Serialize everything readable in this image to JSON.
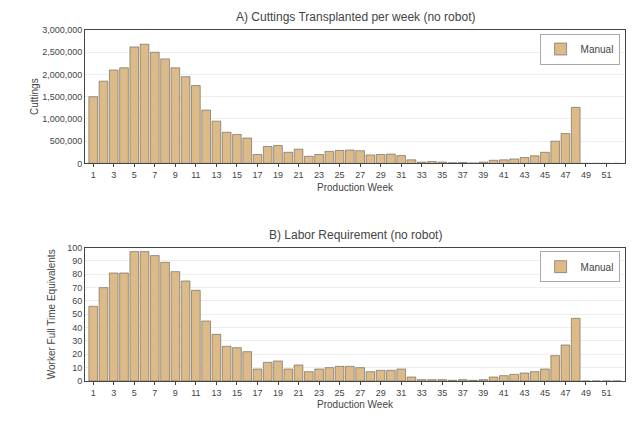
{
  "chart_data": [
    {
      "type": "bar",
      "title": "A) Cuttings Transplanted per week (no robot)",
      "xlabel": "Production Week",
      "ylabel": "Cuttings",
      "x": [
        1,
        2,
        3,
        4,
        5,
        6,
        7,
        8,
        9,
        10,
        11,
        12,
        13,
        14,
        15,
        16,
        17,
        18,
        19,
        20,
        21,
        22,
        23,
        24,
        25,
        26,
        27,
        28,
        29,
        30,
        31,
        32,
        33,
        34,
        35,
        36,
        37,
        38,
        39,
        40,
        41,
        42,
        43,
        44,
        45,
        46,
        47,
        48,
        49,
        50,
        51,
        52
      ],
      "series": [
        {
          "name": "Manual",
          "color": "#DDBB88",
          "values": [
            1500000,
            1850000,
            2100000,
            2150000,
            2620000,
            2680000,
            2500000,
            2350000,
            2150000,
            1950000,
            1750000,
            1200000,
            950000,
            700000,
            650000,
            570000,
            200000,
            380000,
            400000,
            250000,
            320000,
            160000,
            200000,
            270000,
            290000,
            300000,
            285000,
            190000,
            200000,
            210000,
            175000,
            80000,
            30000,
            40000,
            30000,
            15000,
            20000,
            10000,
            30000,
            70000,
            80000,
            100000,
            130000,
            170000,
            250000,
            500000,
            670000,
            1260000,
            0,
            0,
            0,
            0
          ]
        }
      ],
      "xlim": [
        0.2,
        52.8
      ],
      "xticks": [
        1,
        3,
        5,
        7,
        9,
        11,
        13,
        15,
        17,
        19,
        21,
        23,
        25,
        27,
        29,
        31,
        33,
        35,
        37,
        39,
        41,
        43,
        45,
        47,
        49,
        51
      ],
      "ylim": [
        0,
        3000000
      ],
      "yticks": [
        0,
        {
          "value": 500000,
          "label": "500,000"
        },
        {
          "value": 1000000,
          "label": "1,000,000"
        },
        {
          "value": 1500000,
          "label": "1,500,000"
        },
        {
          "value": 2000000,
          "label": "2,000,000"
        },
        {
          "value": 2500000,
          "label": "2,500,000"
        },
        {
          "value": 3000000,
          "label": "3,000,000"
        }
      ],
      "grid": "y",
      "legend": "upper right"
    },
    {
      "type": "bar",
      "title": "B) Labor Requirement (no robot)",
      "xlabel": "Production Week",
      "ylabel": "Worker Full Time Equivalents",
      "x": [
        1,
        2,
        3,
        4,
        5,
        6,
        7,
        8,
        9,
        10,
        11,
        12,
        13,
        14,
        15,
        16,
        17,
        18,
        19,
        20,
        21,
        22,
        23,
        24,
        25,
        26,
        27,
        28,
        29,
        30,
        31,
        32,
        33,
        34,
        35,
        36,
        37,
        38,
        39,
        40,
        41,
        42,
        43,
        44,
        45,
        46,
        47,
        48,
        49,
        50,
        51,
        52
      ],
      "series": [
        {
          "name": "Manual",
          "color": "#DDBB88",
          "values": [
            56,
            70,
            81,
            81,
            97,
            97,
            94,
            89,
            82,
            75,
            68,
            45,
            35,
            26,
            25,
            22,
            9,
            14,
            15,
            9,
            12,
            7,
            9,
            10,
            11,
            11,
            10,
            7,
            8,
            8,
            9,
            3,
            1,
            1,
            1,
            0.5,
            1,
            0.5,
            1,
            3,
            4,
            5,
            6,
            7,
            9,
            19,
            27,
            47,
            0,
            0,
            0,
            0
          ]
        }
      ],
      "xlim": [
        0.2,
        52.8
      ],
      "xticks": [
        1,
        3,
        5,
        7,
        9,
        11,
        13,
        15,
        17,
        19,
        21,
        23,
        25,
        27,
        29,
        31,
        33,
        35,
        37,
        39,
        41,
        43,
        45,
        47,
        49,
        51
      ],
      "ylim": [
        0,
        100
      ],
      "yticks": [
        0,
        10,
        20,
        30,
        40,
        50,
        60,
        70,
        80,
        90,
        100
      ],
      "grid": "y",
      "legend": "upper right"
    }
  ]
}
